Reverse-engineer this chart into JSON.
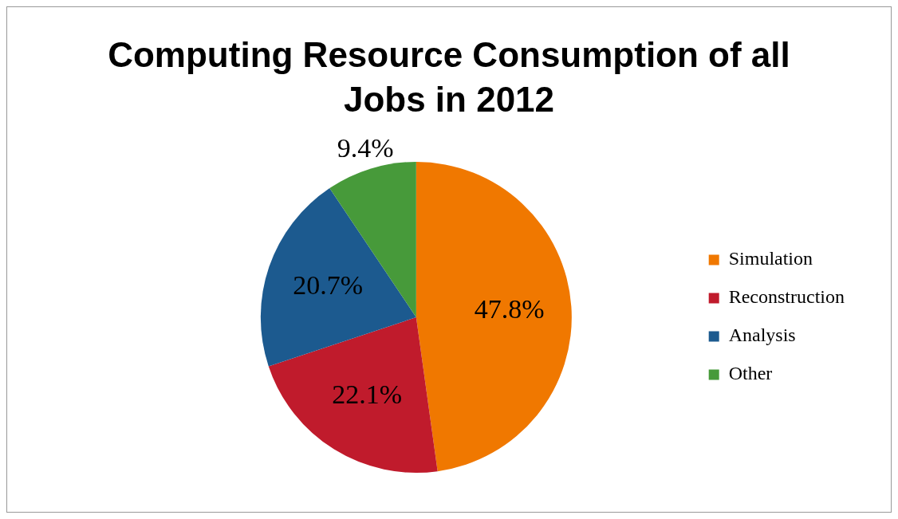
{
  "chart_data": {
    "type": "pie",
    "title": "Computing Resource Consumption of all Jobs in 2012",
    "categories": [
      "Simulation",
      "Reconstruction",
      "Analysis",
      "Other"
    ],
    "values": [
      47.8,
      22.1,
      20.7,
      9.4
    ],
    "colors": [
      "#f07800",
      "#c01b2c",
      "#1c5a8f",
      "#479a3a"
    ],
    "value_labels": [
      "47.8%",
      "22.1%",
      "20.7%",
      "9.4%"
    ],
    "legend": "right"
  }
}
